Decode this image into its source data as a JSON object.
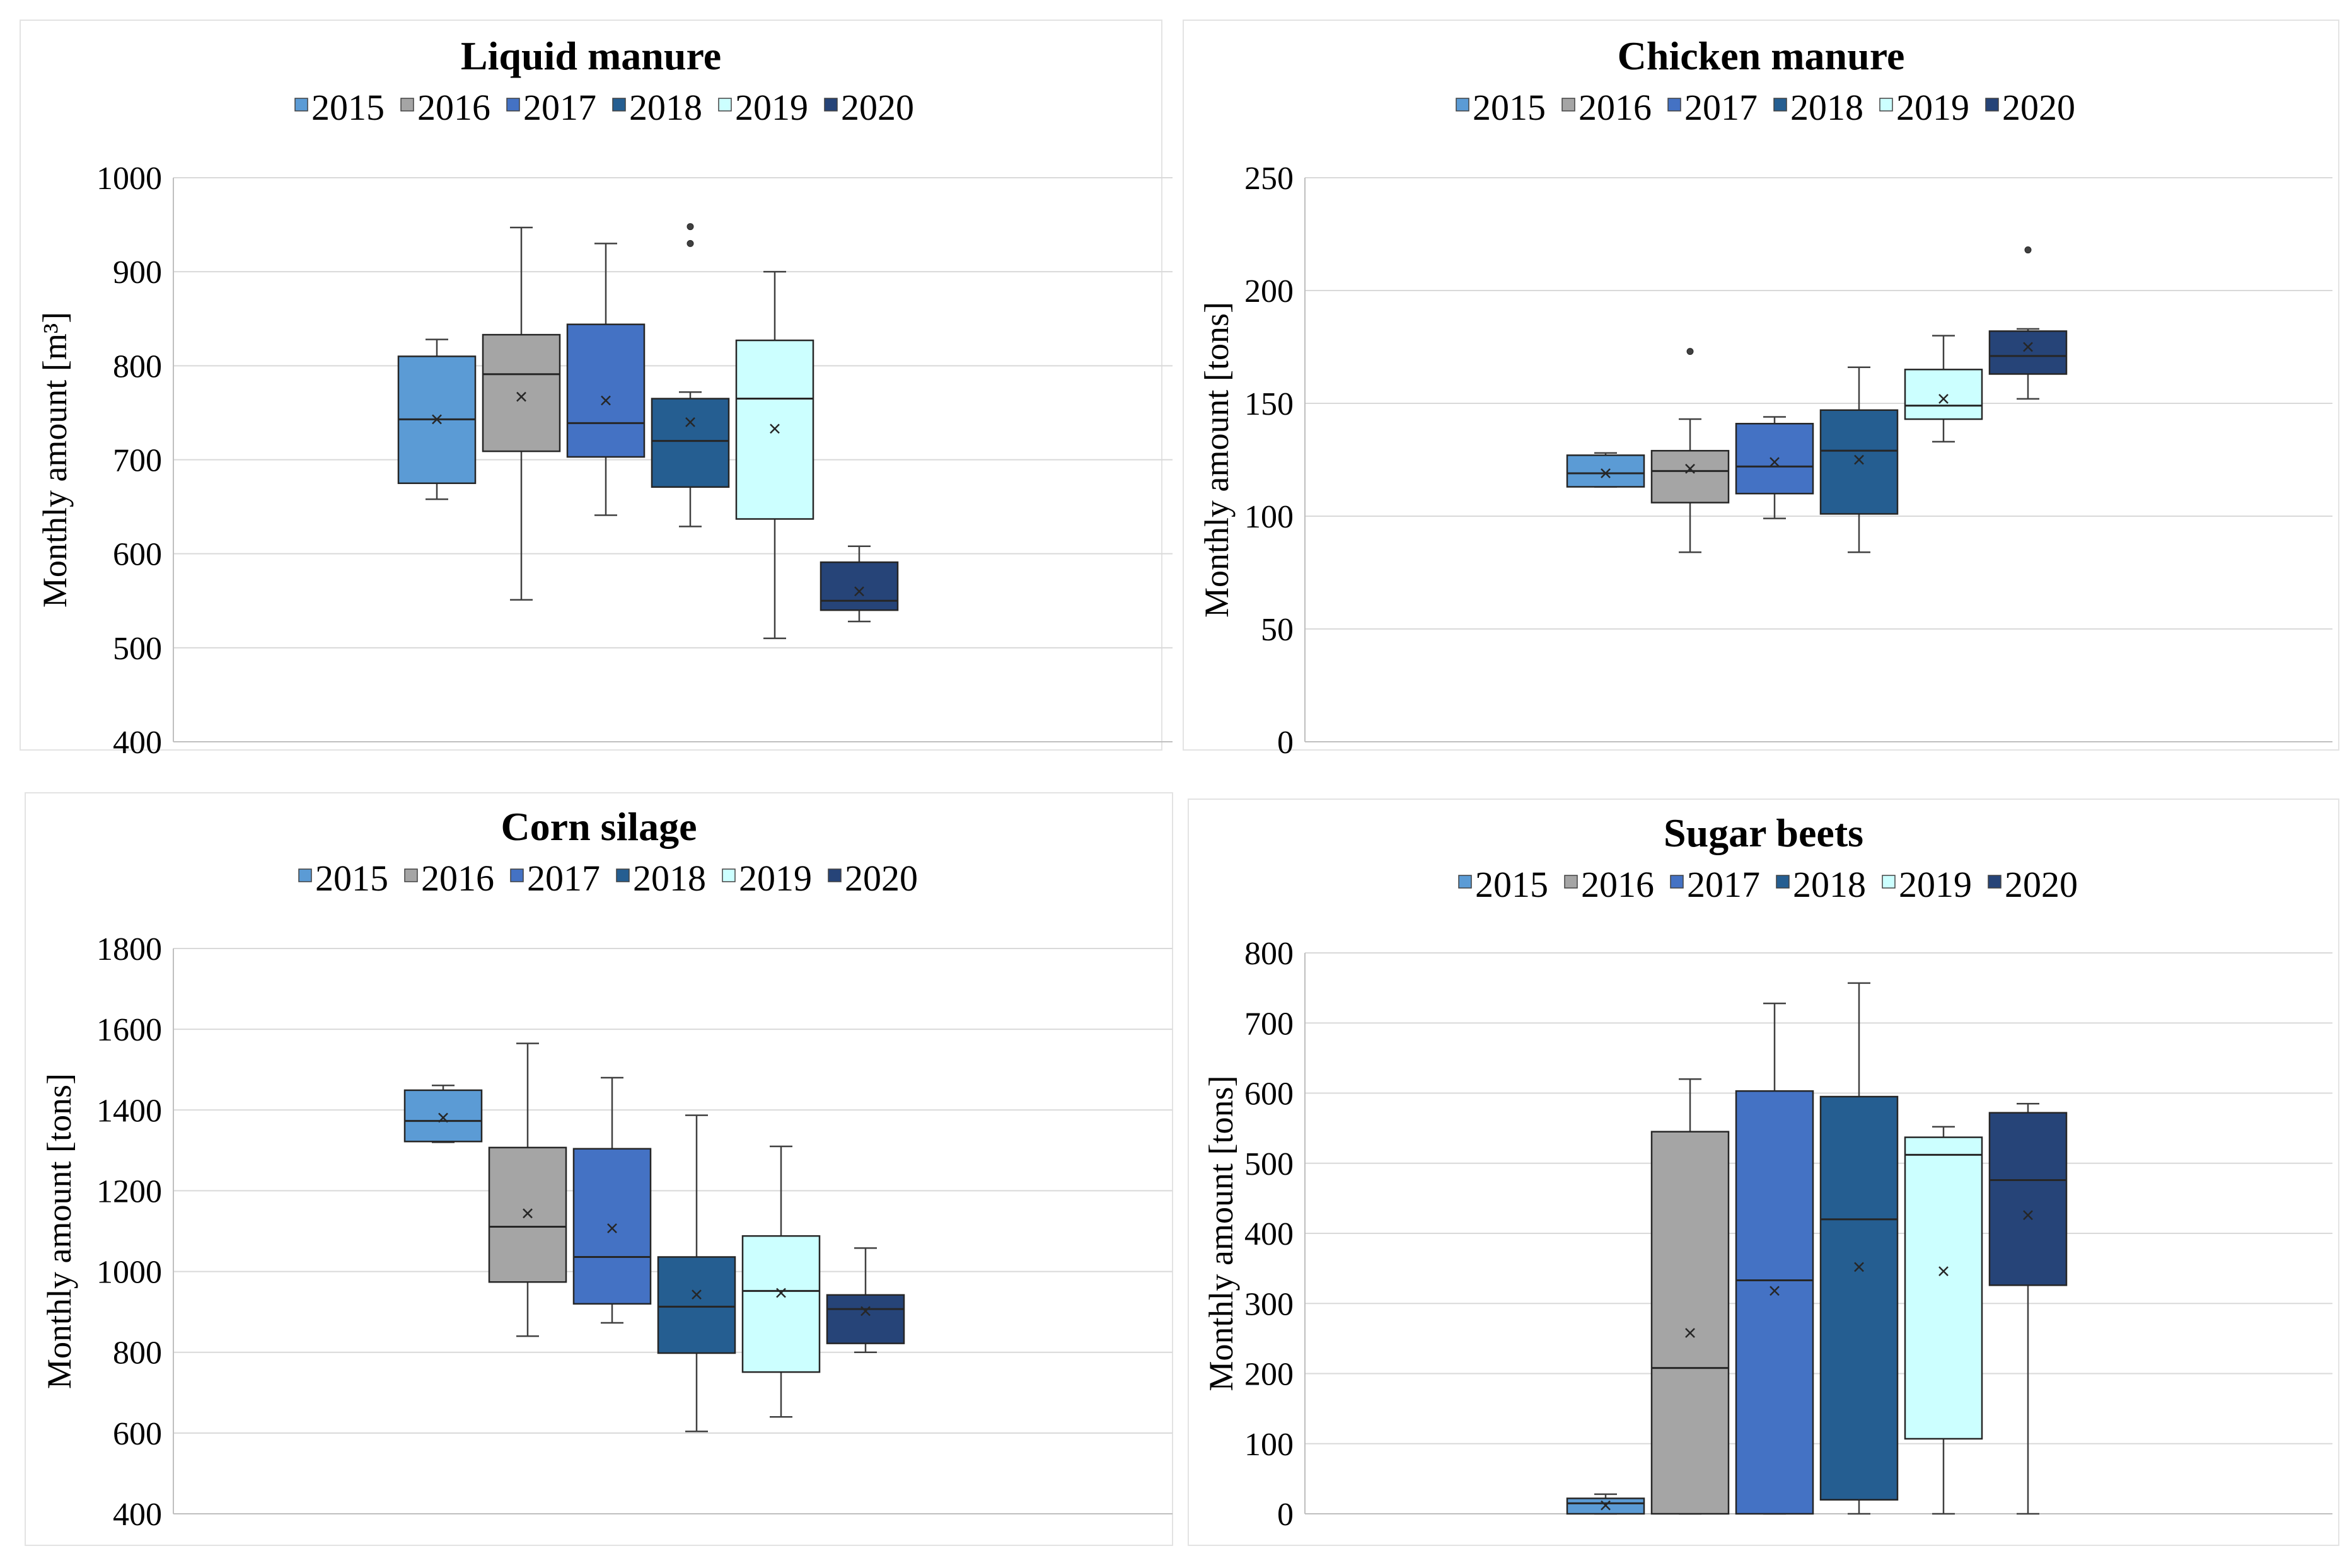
{
  "colors": {
    "2015": "#5b9bd5",
    "2016": "#a5a5a5",
    "2017": "#4472c4",
    "2018": "#255e91",
    "2019": "#ccffff",
    "2020": "#264478",
    "grid": "#d9d9d9",
    "axis": "#bfbfbf",
    "text": "#000000",
    "panel_border": "#e3e3e3"
  },
  "chart_data": [
    {
      "type": "box",
      "title": "Liquid manure",
      "ylabel": "Monthly amount  [m³]",
      "ylim": [
        400,
        1000
      ],
      "ticks": [
        400,
        500,
        600,
        700,
        800,
        900,
        1000
      ],
      "tick_labels": [
        "400",
        "500",
        "600",
        "700",
        "800",
        "900",
        "1000"
      ],
      "legend": [
        "2015",
        "2016",
        "2017",
        "2018",
        "2019",
        "2020"
      ],
      "series": [
        {
          "name": "2015",
          "min": 658,
          "q1": 675,
          "median": 743,
          "q3": 810,
          "max": 828,
          "mean": 743,
          "outliers": []
        },
        {
          "name": "2016",
          "min": 551,
          "q1": 709,
          "median": 791,
          "q3": 833,
          "max": 947,
          "mean": 767,
          "outliers": []
        },
        {
          "name": "2017",
          "min": 641,
          "q1": 703,
          "median": 739,
          "q3": 844,
          "max": 930,
          "mean": 763,
          "outliers": []
        },
        {
          "name": "2018",
          "min": 629,
          "q1": 671,
          "median": 720,
          "q3": 765,
          "max": 772,
          "mean": 740,
          "outliers": [
            930,
            948
          ]
        },
        {
          "name": "2019",
          "min": 510,
          "q1": 637,
          "median": 765,
          "q3": 827,
          "max": 900,
          "mean": 733,
          "outliers": []
        },
        {
          "name": "2020",
          "min": 528,
          "q1": 540,
          "median": 550,
          "q3": 591,
          "max": 608,
          "mean": 560,
          "outliers": []
        }
      ]
    },
    {
      "type": "box",
      "title": "Chicken manure",
      "ylabel": "Monthly amount [tons]",
      "ylim": [
        0,
        250
      ],
      "ticks": [
        0,
        50,
        100,
        150,
        200,
        250
      ],
      "tick_labels": [
        "0",
        "50",
        "100",
        "150",
        "200",
        "250"
      ],
      "legend": [
        "2015",
        "2016",
        "2017",
        "2018",
        "2019",
        "2020"
      ],
      "series": [
        {
          "name": "2015",
          "min": 113,
          "q1": 113,
          "median": 119,
          "q3": 127,
          "max": 128,
          "mean": 119,
          "outliers": []
        },
        {
          "name": "2016",
          "min": 84,
          "q1": 106,
          "median": 120,
          "q3": 129,
          "max": 143,
          "mean": 121,
          "outliers": [
            173
          ]
        },
        {
          "name": "2017",
          "min": 99,
          "q1": 110,
          "median": 122,
          "q3": 141,
          "max": 144,
          "mean": 124,
          "outliers": []
        },
        {
          "name": "2018",
          "min": 84,
          "q1": 101,
          "median": 129,
          "q3": 147,
          "max": 166,
          "mean": 125,
          "outliers": []
        },
        {
          "name": "2019",
          "min": 133,
          "q1": 143,
          "median": 149,
          "q3": 165,
          "max": 180,
          "mean": 152,
          "outliers": []
        },
        {
          "name": "2020",
          "min": 152,
          "q1": 163,
          "median": 171,
          "q3": 182,
          "max": 183,
          "mean": 175,
          "outliers": [
            218
          ]
        }
      ]
    },
    {
      "type": "box",
      "title": "Corn silage",
      "ylabel": "Monthly amount [tons]",
      "ylim": [
        400,
        1800
      ],
      "ticks": [
        400,
        600,
        800,
        1000,
        1200,
        1400,
        1600,
        1800
      ],
      "tick_labels": [
        "400",
        "600",
        "800",
        "1000",
        "1200",
        "1400",
        "1600",
        "1800"
      ],
      "legend": [
        "2015",
        "2016",
        "2017",
        "2018",
        "2019",
        "2020"
      ],
      "series": [
        {
          "name": "2015",
          "min": 1320,
          "q1": 1322,
          "median": 1373,
          "q3": 1449,
          "max": 1461,
          "mean": 1381,
          "outliers": []
        },
        {
          "name": "2016",
          "min": 840,
          "q1": 974,
          "median": 1111,
          "q3": 1307,
          "max": 1565,
          "mean": 1144,
          "outliers": []
        },
        {
          "name": "2017",
          "min": 873,
          "q1": 920,
          "median": 1036,
          "q3": 1304,
          "max": 1480,
          "mean": 1107,
          "outliers": []
        },
        {
          "name": "2018",
          "min": 604,
          "q1": 798,
          "median": 913,
          "q3": 1036,
          "max": 1387,
          "mean": 943,
          "outliers": []
        },
        {
          "name": "2019",
          "min": 640,
          "q1": 751,
          "median": 952,
          "q3": 1088,
          "max": 1310,
          "mean": 947,
          "outliers": []
        },
        {
          "name": "2020",
          "min": 800,
          "q1": 822,
          "median": 907,
          "q3": 942,
          "max": 1058,
          "mean": 902,
          "outliers": []
        }
      ]
    },
    {
      "type": "box",
      "title": "Sugar beets",
      "ylabel": "Monthly amount [tons]",
      "ylim": [
        0,
        800
      ],
      "ticks": [
        0,
        100,
        200,
        300,
        400,
        500,
        600,
        700,
        800
      ],
      "tick_labels": [
        "0",
        "100",
        "200",
        "300",
        "400",
        "500",
        "600",
        "700",
        "800"
      ],
      "legend": [
        "2015",
        "2016",
        "2017",
        "2018",
        "2019",
        "2020"
      ],
      "series": [
        {
          "name": "2015",
          "min": 0,
          "q1": 0,
          "median": 15,
          "q3": 22,
          "max": 28,
          "mean": 12,
          "outliers": []
        },
        {
          "name": "2016",
          "min": 0,
          "q1": 0,
          "median": 208,
          "q3": 545,
          "max": 620,
          "mean": 258,
          "outliers": []
        },
        {
          "name": "2017",
          "min": 0,
          "q1": 0,
          "median": 333,
          "q3": 603,
          "max": 728,
          "mean": 318,
          "outliers": []
        },
        {
          "name": "2018",
          "min": 0,
          "q1": 20,
          "median": 420,
          "q3": 595,
          "max": 757,
          "mean": 352,
          "outliers": []
        },
        {
          "name": "2019",
          "min": 0,
          "q1": 107,
          "median": 512,
          "q3": 537,
          "max": 552,
          "mean": 346,
          "outliers": []
        },
        {
          "name": "2020",
          "min": 0,
          "q1": 326,
          "median": 476,
          "q3": 572,
          "max": 585,
          "mean": 426,
          "outliers": []
        }
      ]
    }
  ]
}
